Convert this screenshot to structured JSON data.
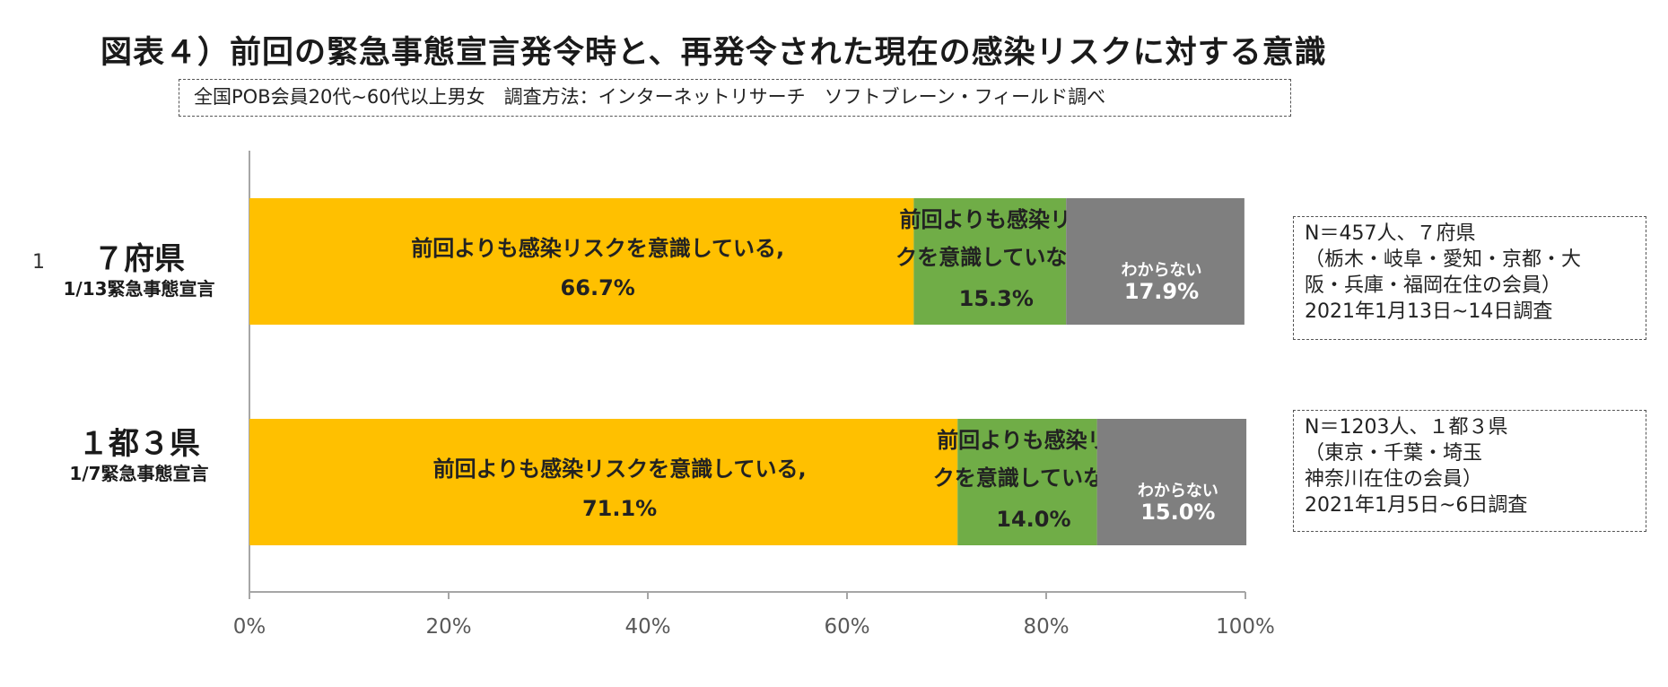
{
  "title": "図表４）前回の緊急事態宣言発令時と、再発令された現在の感染リスクに対する意識",
  "subtitle": "全国POB会員20代~60代以上男女　調査方法：インターネットリサーチ　ソフトブレーン・フィールド調べ",
  "stray_mark": "1",
  "colors": {
    "aware": "#FFC000",
    "not_aware": "#70AD47",
    "unknown": "#7F7F7F",
    "axis": "#A6A6A6"
  },
  "rows": [
    {
      "main": "７府県",
      "sub": "1/13緊急事態宣言",
      "note": [
        "N＝457人、７府県",
        "（栃木・岐阜・愛知・京都・大",
        "阪・兵庫・福岡在住の会員）",
        "2021年1月13日~14日調査"
      ]
    },
    {
      "main": "１都３県",
      "sub": "1/7緊急事態宣言",
      "note": [
        "N＝1203人、１都３県",
        "（東京・千葉・埼玉",
        "神奈川在住の会員）",
        "2021年1月5日~6日調査"
      ]
    }
  ],
  "chart_data": {
    "type": "bar",
    "orientation": "horizontal",
    "stacked": "percent",
    "categories": [
      "７府県",
      "１都３県"
    ],
    "series": [
      {
        "name": "前回よりも感染リスクを意識している",
        "values": [
          66.7,
          71.1
        ],
        "labels": [
          [
            "前回よりも感染リスクを意識している,",
            "66.7%"
          ],
          [
            "前回よりも感染リスクを意識している,",
            "71.1%"
          ]
        ]
      },
      {
        "name": "前回よりも感染リスクを意識していない",
        "values": [
          15.3,
          14.0
        ],
        "labels": [
          [
            "前回よりも感染リス",
            "クを意識していない,",
            "15.3%"
          ],
          [
            "前回よりも感染リス",
            "クを意識していない,",
            "14.0%"
          ]
        ]
      },
      {
        "name": "わからない",
        "values": [
          17.9,
          15.0
        ],
        "labels": [
          [
            "わからない",
            "17.9%"
          ],
          [
            "わからない",
            "15.0%"
          ]
        ]
      }
    ],
    "xlim": [
      0,
      100
    ],
    "xticks": [
      "0%",
      "20%",
      "40%",
      "60%",
      "80%",
      "100%"
    ],
    "legend": "none"
  }
}
